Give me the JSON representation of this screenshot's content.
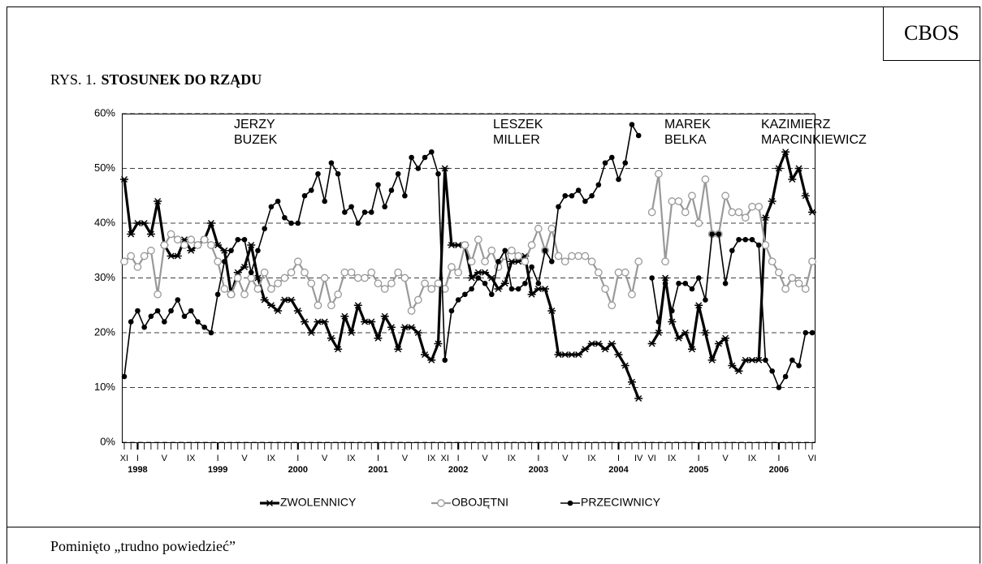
{
  "header": "CBOS",
  "footnote": "Pominięto „trudno powiedzieć”",
  "chart_data": {
    "type": "line",
    "figure_label": "RYS. 1.",
    "title": "STOSUNEK DO RZĄDU",
    "categories": [
      "XI",
      null,
      "I",
      null,
      null,
      null,
      "V",
      null,
      null,
      null,
      "IX",
      null,
      null,
      null,
      "I",
      null,
      null,
      null,
      "V",
      null,
      null,
      null,
      "IX",
      null,
      null,
      null,
      "I",
      null,
      null,
      null,
      "V",
      null,
      null,
      null,
      "IX",
      null,
      null,
      null,
      "I",
      null,
      null,
      null,
      "V",
      null,
      null,
      null,
      "IX",
      null,
      "XI",
      null,
      "I",
      null,
      null,
      null,
      "V",
      null,
      null,
      null,
      "IX",
      null,
      null,
      null,
      "I",
      null,
      null,
      null,
      "V",
      null,
      null,
      null,
      "IX",
      null,
      null,
      null,
      "I",
      null,
      null,
      "IV",
      null,
      "VI",
      null,
      null,
      "IX",
      null,
      null,
      null,
      "I",
      null,
      null,
      null,
      "V",
      null,
      null,
      null,
      "IX",
      null,
      null,
      null,
      "I",
      null,
      null,
      null,
      null,
      "VI"
    ],
    "year_labels": [
      null,
      null,
      "1998",
      null,
      null,
      null,
      null,
      null,
      null,
      null,
      null,
      null,
      null,
      null,
      "1999",
      null,
      null,
      null,
      null,
      null,
      null,
      null,
      null,
      null,
      null,
      null,
      "2000",
      null,
      null,
      null,
      null,
      null,
      null,
      null,
      null,
      null,
      null,
      null,
      "2001",
      null,
      null,
      null,
      null,
      null,
      null,
      null,
      null,
      null,
      null,
      null,
      "2002",
      null,
      null,
      null,
      null,
      null,
      null,
      null,
      null,
      null,
      null,
      null,
      "2003",
      null,
      null,
      null,
      null,
      null,
      null,
      null,
      null,
      null,
      null,
      null,
      "2004",
      null,
      null,
      null,
      null,
      null,
      null,
      null,
      null,
      null,
      null,
      null,
      "2005",
      null,
      null,
      null,
      null,
      null,
      null,
      null,
      null,
      null,
      null,
      null,
      "2006",
      null,
      null,
      null,
      null,
      null
    ],
    "series": [
      {
        "name": "ZWOLENNICY",
        "color": "#000000",
        "values": [
          48,
          38,
          40,
          40,
          38,
          44,
          36,
          34,
          34,
          37,
          35,
          36,
          37,
          40,
          36,
          35,
          27,
          31,
          32,
          36,
          30,
          26,
          25,
          24,
          26,
          26,
          24,
          22,
          20,
          22,
          22,
          19,
          17,
          23,
          20,
          25,
          22,
          22,
          19,
          23,
          21,
          17,
          21,
          21,
          20,
          16,
          15,
          18,
          50,
          36,
          36,
          36,
          30,
          31,
          31,
          30,
          28,
          29,
          33,
          33,
          34,
          27,
          28,
          28,
          24,
          16,
          16,
          16,
          16,
          17,
          18,
          18,
          17,
          18,
          16,
          14,
          11,
          8,
          null,
          18,
          20,
          30,
          22,
          19,
          20,
          17,
          25,
          20,
          15,
          18,
          19,
          14,
          13,
          15,
          15,
          15,
          41,
          44,
          50,
          53,
          48,
          50,
          45,
          42
        ]
      },
      {
        "name": "OBOJĘTNI",
        "color": "#999999",
        "values": [
          33,
          34,
          32,
          34,
          35,
          27,
          36,
          38,
          37,
          36,
          37,
          36,
          37,
          36,
          33,
          28,
          27,
          30,
          27,
          30,
          28,
          31,
          28,
          29,
          30,
          31,
          33,
          31,
          29,
          25,
          30,
          25,
          27,
          31,
          31,
          30,
          30,
          31,
          29,
          28,
          29,
          31,
          30,
          24,
          26,
          29,
          28,
          29,
          28,
          32,
          31,
          36,
          33,
          37,
          33,
          35,
          32,
          34,
          35,
          34,
          33,
          36,
          39,
          35,
          39,
          34,
          33,
          34,
          34,
          34,
          33,
          31,
          28,
          25,
          31,
          31,
          27,
          33,
          null,
          42,
          49,
          33,
          44,
          44,
          42,
          45,
          40,
          48,
          38,
          38,
          45,
          42,
          42,
          41,
          43,
          43,
          36,
          33,
          31,
          28,
          30,
          29,
          28,
          33
        ]
      },
      {
        "name": "PRZECIWNICY",
        "color": "#000000",
        "values": [
          12,
          22,
          24,
          21,
          23,
          24,
          22,
          24,
          26,
          23,
          24,
          22,
          21,
          20,
          27,
          33,
          35,
          37,
          37,
          31,
          35,
          39,
          43,
          44,
          41,
          40,
          40,
          45,
          46,
          49,
          44,
          51,
          49,
          42,
          43,
          40,
          42,
          42,
          47,
          43,
          46,
          49,
          45,
          52,
          50,
          52,
          53,
          49,
          15,
          24,
          26,
          27,
          28,
          30,
          29,
          27,
          33,
          35,
          28,
          28,
          29,
          32,
          29,
          35,
          33,
          43,
          45,
          45,
          46,
          44,
          45,
          47,
          51,
          52,
          48,
          51,
          58,
          56,
          null,
          30,
          22,
          29,
          24,
          29,
          29,
          28,
          30,
          26,
          38,
          38,
          29,
          35,
          37,
          37,
          37,
          36,
          15,
          13,
          10,
          12,
          15,
          14,
          20,
          20
        ]
      }
    ],
    "annotations": [
      {
        "lines": [
          "JERZY",
          "BUZEK"
        ]
      },
      {
        "lines": [
          "LESZEK",
          "MILLER"
        ]
      },
      {
        "lines": [
          "MAREK",
          "BELKA"
        ]
      },
      {
        "lines": [
          "KAZIMIERZ",
          "MARCINKIEWICZ"
        ]
      }
    ],
    "ylim": [
      0,
      60
    ],
    "yticks": [
      {
        "value": 0,
        "label": "0%"
      },
      {
        "value": 10,
        "label": "10%"
      },
      {
        "value": 20,
        "label": "20%"
      },
      {
        "value": 30,
        "label": "30%"
      },
      {
        "value": 40,
        "label": "40%"
      },
      {
        "value": 50,
        "label": "50%"
      },
      {
        "value": 60,
        "label": "60%"
      }
    ],
    "grid": true
  }
}
